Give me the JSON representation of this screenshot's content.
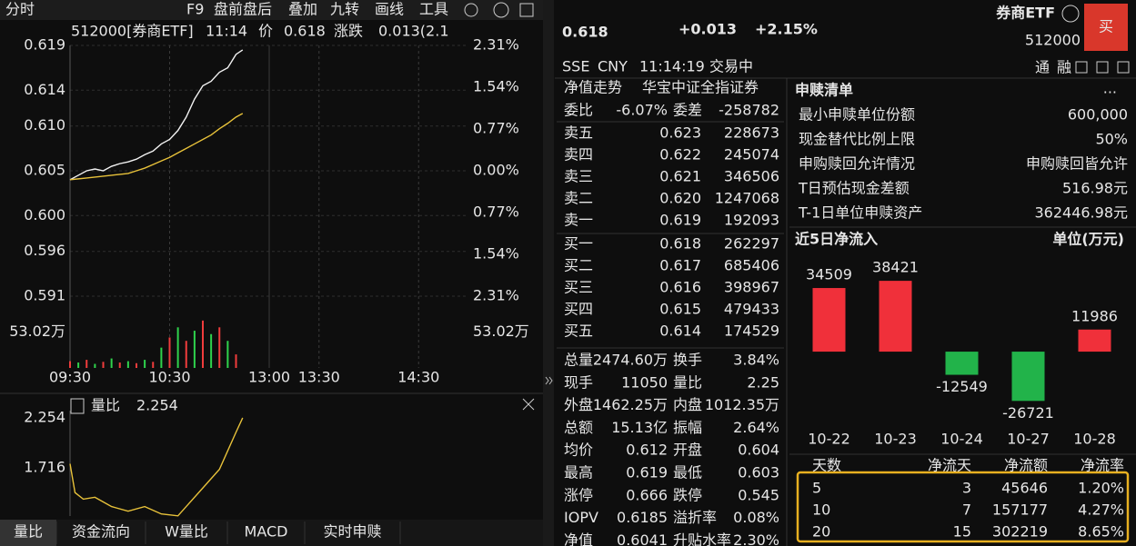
{
  "toolbar": {
    "mode": "分时",
    "items": [
      "F9",
      "盘前盘后",
      "叠加",
      "九转",
      "画线",
      "工具"
    ]
  },
  "quote": {
    "price": "0.618",
    "change": "+0.013",
    "change_pct": "+2.15%",
    "name": "券商ETF",
    "code": "512000",
    "buy": "买",
    "exchange": "SSE",
    "currency": "CNY",
    "time": "11:14:19",
    "status": "交易中",
    "badges": [
      "通",
      "融"
    ]
  },
  "chart_data": [
    {
      "type": "line",
      "header": [
        "512000[券商ETF]",
        "11:14",
        "价",
        "0.618",
        "涨跌",
        "0.013(2.1"
      ],
      "x": [
        0,
        5,
        10,
        15,
        20,
        25,
        30,
        35,
        40,
        45,
        50,
        55,
        60,
        65,
        70,
        75,
        80,
        85,
        90,
        95,
        100,
        104
      ],
      "series": [
        {
          "color": "#f2f2f2",
          "values": [
            0.604,
            0.6045,
            0.605,
            0.6052,
            0.605,
            0.6055,
            0.6058,
            0.606,
            0.6063,
            0.6068,
            0.6072,
            0.608,
            0.6085,
            0.6095,
            0.611,
            0.613,
            0.6145,
            0.615,
            0.616,
            0.6165,
            0.618,
            0.6185
          ]
        },
        {
          "color": "#e8c23a",
          "values": [
            0.604,
            0.6041,
            0.6042,
            0.6043,
            0.6044,
            0.6045,
            0.6046,
            0.6047,
            0.605,
            0.6053,
            0.6057,
            0.6061,
            0.6065,
            0.607,
            0.6075,
            0.608,
            0.6085,
            0.609,
            0.6097,
            0.6103,
            0.611,
            0.6114
          ]
        }
      ],
      "xlim": [
        0,
        240
      ],
      "xticks": [
        {
          "value": 0,
          "label": "09:30"
        },
        {
          "value": 60,
          "label": "10:30"
        },
        {
          "value": 120,
          "label": "13:00"
        },
        {
          "value": 150,
          "label": "13:30"
        },
        {
          "value": 210,
          "label": "14:30"
        }
      ],
      "ylim": [
        0.591,
        0.619
      ],
      "yticks": [
        0.619,
        0.614,
        {
          "value": 0.61,
          "label": "0.610"
        },
        0.605,
        {
          "value": 0.6,
          "label": "0.600"
        },
        0.596,
        0.591
      ],
      "y2lim": [
        -2.31,
        2.31
      ],
      "y2ticks": [
        {
          "value": 2.31,
          "label": "2.31%"
        },
        {
          "value": 1.54,
          "label": "1.54%"
        },
        {
          "value": 0.77,
          "label": "0.77%"
        },
        {
          "value": 0,
          "label": "0.00%"
        },
        {
          "value": -0.77,
          "label": "0.77%"
        },
        {
          "value": -1.54,
          "label": "1.54%"
        },
        {
          "value": -2.31,
          "label": "2.31%"
        }
      ],
      "grid": true
    },
    {
      "type": "bar",
      "x": [
        0,
        5,
        10,
        15,
        20,
        25,
        30,
        35,
        40,
        45,
        50,
        55,
        60,
        65,
        70,
        75,
        80,
        85,
        90,
        95,
        100
      ],
      "values": [
        10,
        8,
        12,
        6,
        9,
        14,
        8,
        10,
        7,
        12,
        9,
        30,
        45,
        60,
        40,
        55,
        70,
        50,
        60,
        40,
        20
      ],
      "colors": [
        "#f03c3c",
        "#2fd34c"
      ],
      "xlim": [
        0,
        240
      ],
      "ylim": [
        0,
        106.04
      ],
      "yticks": [
        {
          "value": 53.02,
          "label": "53.02万"
        }
      ]
    },
    {
      "type": "line",
      "header": [
        "量比",
        "2.254"
      ],
      "x": [
        0,
        3,
        8,
        15,
        25,
        35,
        45,
        55,
        65,
        70,
        80,
        90,
        95,
        100,
        104
      ],
      "series": [
        {
          "color": "#e8c23a",
          "values": [
            1.76,
            1.45,
            1.38,
            1.4,
            1.3,
            1.25,
            1.3,
            1.22,
            1.2,
            1.3,
            1.5,
            1.7,
            1.9,
            2.1,
            2.254
          ]
        }
      ],
      "xlim": [
        0,
        240
      ],
      "ylim": [
        1.198,
        2.332
      ],
      "yticks": [
        2.254,
        1.716
      ]
    },
    {
      "type": "bar",
      "title": "近5日净流入",
      "unit": "单位(万元)",
      "categories": [
        "10-22",
        "10-23",
        "10-24",
        "10-27",
        "10-28"
      ],
      "values": [
        34509,
        38421,
        -12549,
        -26721,
        11986
      ],
      "colors": {
        "positive": "#f0303a",
        "negative": "#22b34a"
      },
      "ylim": [
        -38400,
        50300
      ]
    }
  ],
  "order_book": {
    "tabs": [
      "净值走势",
      "华宝中证全指证券"
    ],
    "ratio_label": "委比",
    "ratio": "-6.07%",
    "diff_label": "委差",
    "diff": "-258782",
    "asks": [
      [
        "卖五",
        "0.623",
        "228673"
      ],
      [
        "卖四",
        "0.622",
        "245074"
      ],
      [
        "卖三",
        "0.621",
        "346506"
      ],
      [
        "卖二",
        "0.620",
        "1247068"
      ],
      [
        "卖一",
        "0.619",
        "192093"
      ]
    ],
    "bids": [
      [
        "买一",
        "0.618",
        "262297"
      ],
      [
        "买二",
        "0.617",
        "685406"
      ],
      [
        "买三",
        "0.616",
        "398967"
      ],
      [
        "买四",
        "0.615",
        "479433"
      ],
      [
        "买五",
        "0.614",
        "174529"
      ]
    ]
  },
  "stats": [
    [
      "总量",
      "2474.60万",
      "换手",
      "3.84%"
    ],
    [
      "现手",
      "11050",
      "量比",
      "2.25"
    ],
    [
      "外盘",
      "1462.25万",
      "内盘",
      "1012.35万"
    ],
    [
      "总额",
      "15.13亿",
      "振幅",
      "2.64%"
    ],
    [
      "均价",
      "0.612",
      "开盘",
      "0.604"
    ],
    [
      "最高",
      "0.619",
      "最低",
      "0.603"
    ],
    [
      "涨停",
      "0.666",
      "跌停",
      "0.545"
    ],
    [
      "IOPV",
      "0.6185",
      "溢折率",
      "0.08%"
    ],
    [
      "净值",
      "0.6041",
      "升贴水率",
      "2.30%"
    ]
  ],
  "redemption": {
    "title": "申赎清单",
    "more": "...",
    "rows": [
      [
        "最小申赎单位份额",
        "600,000"
      ],
      [
        "现金替代比例上限",
        "50%"
      ],
      [
        "申购赎回允许情况",
        "申购赎回皆允许"
      ],
      [
        "T日预估现金差额",
        "516.98元"
      ],
      [
        "T-1日单位申赎资产",
        "362446.98元"
      ]
    ]
  },
  "flow_table": {
    "headers": [
      "天数",
      "净流天",
      "净流额",
      "净流率"
    ],
    "rows": [
      [
        "5",
        "3",
        "45646",
        "1.20%"
      ],
      [
        "10",
        "7",
        "157177",
        "4.27%"
      ],
      [
        "20",
        "15",
        "302219",
        "8.65%"
      ]
    ]
  },
  "bottom_tabs": [
    "量比",
    "资金流向",
    "W量比",
    "MACD",
    "实时申赎"
  ]
}
